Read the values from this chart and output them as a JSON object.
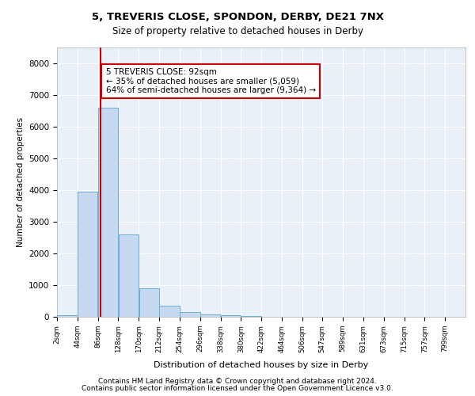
{
  "title1": "5, TREVERIS CLOSE, SPONDON, DERBY, DE21 7NX",
  "title2": "Size of property relative to detached houses in Derby",
  "xlabel": "Distribution of detached houses by size in Derby",
  "ylabel": "Number of detached properties",
  "bar_edges": [
    2,
    44,
    86,
    128,
    170,
    212,
    254,
    296,
    338,
    380,
    422,
    464,
    506,
    547,
    589,
    631,
    673,
    715,
    757,
    799,
    841
  ],
  "bar_values": [
    50,
    3950,
    6600,
    2600,
    900,
    350,
    150,
    80,
    40,
    20,
    5,
    2,
    1,
    0,
    0,
    0,
    0,
    0,
    0,
    0
  ],
  "bar_color": "#c6d9f0",
  "bar_edge_color": "#6baed6",
  "property_size": 92,
  "property_line_color": "#cc0000",
  "annotation_text": "5 TREVERIS CLOSE: 92sqm\n← 35% of detached houses are smaller (5,059)\n64% of semi-detached houses are larger (9,364) →",
  "annotation_box_color": "#ffffff",
  "annotation_box_edge": "#cc0000",
  "ylim": [
    0,
    8500
  ],
  "yticks": [
    0,
    1000,
    2000,
    3000,
    4000,
    5000,
    6000,
    7000,
    8000
  ],
  "footer1": "Contains HM Land Registry data © Crown copyright and database right 2024.",
  "footer2": "Contains public sector information licensed under the Open Government Licence v3.0.",
  "plot_bg_color": "#eaf0f8"
}
